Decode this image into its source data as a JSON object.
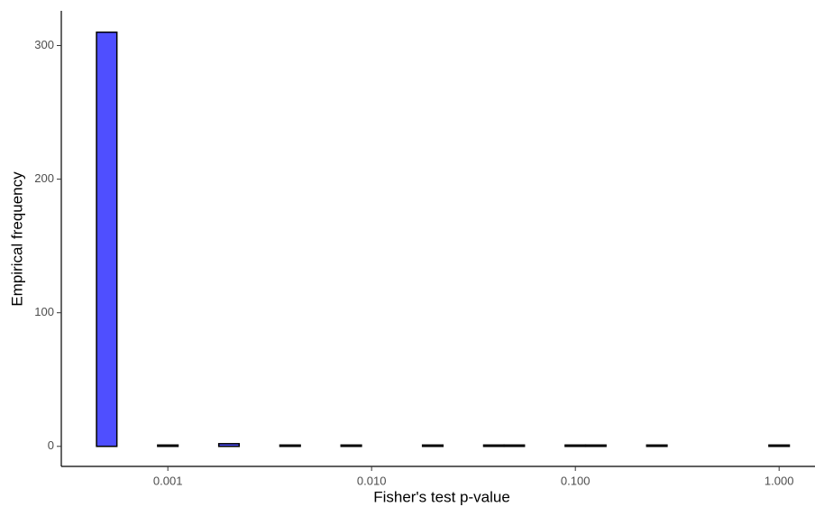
{
  "chart_data": {
    "type": "histogram",
    "x_label": "Fisher's test p-value",
    "y_label": "Empirical frequency",
    "bins": [
      0.0004467,
      0.0005623,
      0.0007079,
      0.0008913,
      0.001122,
      0.001413,
      0.001778,
      0.002239,
      0.002818,
      0.003548,
      0.004467,
      0.005623,
      0.007079,
      0.008913,
      0.01122,
      0.01413,
      0.01778,
      0.02239,
      0.02818,
      0.03548,
      0.04467,
      0.05623,
      0.07079,
      0.08913,
      0.1122,
      0.1413,
      0.1778,
      0.2239,
      0.2818,
      0.3548,
      0.4467,
      0.5623,
      0.7079,
      0.8913,
      1.122
    ],
    "values": [
      310,
      0,
      0,
      1,
      0,
      0,
      2,
      0,
      0,
      1,
      0,
      0,
      1,
      0,
      0,
      0,
      1,
      0,
      0,
      1,
      1,
      0,
      0,
      1,
      1,
      0,
      0,
      1,
      0,
      0,
      0,
      0,
      0,
      1
    ],
    "color": "#4f4fff",
    "x_log": true,
    "xlim": [
      0.0003,
      1.5
    ],
    "xticks": [
      0.001,
      {
        "value": 0.01,
        "label": "0.010"
      },
      {
        "value": 0.1,
        "label": "0.100"
      },
      {
        "value": 1,
        "label": "1.000"
      }
    ],
    "ylim": [
      -15,
      326
    ],
    "yticks": [
      0,
      100,
      200,
      300
    ]
  }
}
